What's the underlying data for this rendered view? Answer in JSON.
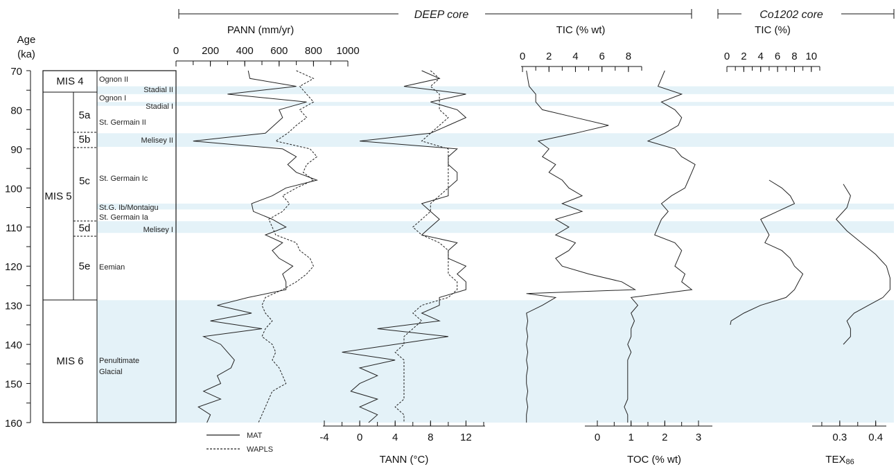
{
  "colors": {
    "band": "#e4f2f8",
    "line": "#222222"
  },
  "headers": {
    "deep": "DEEP core",
    "co1202": "Co1202 core"
  },
  "age_axis": {
    "title1": "Age",
    "title2": "(ka)",
    "ticks": [
      "70",
      "80",
      "90",
      "100",
      "110",
      "120",
      "130",
      "140",
      "150",
      "160"
    ]
  },
  "strat": {
    "mis": [
      "MIS 4",
      "MIS 5",
      "MIS 6"
    ],
    "sub": [
      "5a",
      "5b",
      "5c",
      "5d",
      "5e"
    ],
    "events": [
      "Ognon II",
      "Stadial II",
      "Ognon I",
      "Stadial I",
      "St. Germain II",
      "Melisey II",
      "St. Germain Ic",
      "St.G. Ib/Montaigu",
      "St. Germain Ia",
      "Melisey I",
      "Eemian",
      "Penultimate",
      "Glacial"
    ]
  },
  "axes": {
    "pann": {
      "title": "PANN (mm/yr)",
      "ticks": [
        "0",
        "200",
        "400",
        "600",
        "800",
        "1000"
      ]
    },
    "tann": {
      "title": "TANN (°C)",
      "ticks": [
        "-4",
        "0",
        "4",
        "8",
        "12"
      ]
    },
    "tic_deep": {
      "title": "TIC (% wt)",
      "ticks": [
        "0",
        "2",
        "4",
        "6",
        "8"
      ]
    },
    "toc": {
      "title": "TOC (% wt)",
      "ticks": [
        "0",
        "1",
        "2",
        "3"
      ]
    },
    "tic_co": {
      "title": "TIC (%)",
      "ticks": [
        "0",
        "2",
        "4",
        "6",
        "8",
        "10"
      ]
    },
    "tex": {
      "title": "TEX",
      "sub": "86",
      "ticks": [
        "0.3",
        "0.4"
      ]
    }
  },
  "legend": {
    "mat": "MAT",
    "wapls": "WAPLS"
  },
  "chart_data": [
    {
      "type": "line",
      "title": "PANN (mm/yr)",
      "xlabel": "PANN (mm/yr)",
      "ylabel": "Age (ka)",
      "xlim": [
        0,
        1000
      ],
      "ylim": [
        70,
        160
      ],
      "y": [
        70,
        72,
        74,
        76,
        78,
        80,
        82,
        84,
        86,
        88,
        90,
        92,
        94,
        96,
        98,
        100,
        102,
        104,
        106,
        108,
        110,
        112,
        114,
        116,
        118,
        120,
        122,
        124,
        126,
        128,
        130,
        132,
        134,
        136,
        138,
        140,
        142,
        144,
        146,
        148,
        150,
        152,
        154,
        156,
        158,
        160
      ],
      "series": [
        {
          "name": "MAT",
          "values": [
            420,
            430,
            700,
            300,
            760,
            600,
            620,
            570,
            520,
            100,
            620,
            700,
            650,
            700,
            820,
            640,
            560,
            440,
            450,
            560,
            640,
            520,
            620,
            560,
            600,
            680,
            620,
            640,
            640,
            420,
            240,
            440,
            200,
            500,
            160,
            260,
            300,
            340,
            320,
            240,
            260,
            160,
            260,
            130,
            200,
            180
          ]
        },
        {
          "name": "WAPLS",
          "values": [
            700,
            800,
            720,
            760,
            800,
            720,
            760,
            700,
            650,
            580,
            780,
            820,
            760,
            740,
            800,
            700,
            620,
            660,
            620,
            540,
            560,
            580,
            700,
            720,
            780,
            800,
            760,
            700,
            620,
            520,
            500,
            520,
            560,
            520,
            500,
            560,
            580,
            560,
            600,
            620,
            640,
            560,
            540,
            520,
            500,
            480
          ]
        }
      ]
    },
    {
      "type": "line",
      "title": "TANN (°C)",
      "xlabel": "TANN (°C)",
      "ylabel": "Age (ka)",
      "xlim": [
        -4,
        14
      ],
      "ylim": [
        70,
        160
      ],
      "y": [
        70,
        72,
        74,
        76,
        78,
        80,
        82,
        84,
        86,
        88,
        90,
        92,
        94,
        96,
        98,
        100,
        102,
        104,
        106,
        108,
        110,
        112,
        114,
        116,
        118,
        120,
        122,
        124,
        126,
        128,
        130,
        132,
        134,
        136,
        138,
        140,
        142,
        144,
        146,
        148,
        150,
        152,
        154,
        156,
        158,
        160
      ],
      "series": [
        {
          "name": "MAT",
          "values": [
            7,
            9,
            5,
            12,
            8,
            11,
            12,
            10,
            8,
            0,
            11,
            10,
            10,
            11,
            11,
            10,
            10,
            7,
            8,
            9,
            8,
            7,
            11,
            10,
            10,
            12,
            11,
            12,
            12,
            9,
            9,
            7,
            9,
            2,
            10,
            4,
            -2,
            4,
            0,
            2,
            0,
            -1,
            2,
            0,
            2,
            1
          ]
        },
        {
          "name": "WAPLS",
          "values": [
            8,
            9,
            8,
            9,
            9,
            9,
            10,
            9,
            8,
            7,
            10,
            10,
            10,
            10,
            10,
            10,
            9,
            8,
            8,
            7,
            6,
            7,
            9,
            10,
            10,
            10,
            10,
            11,
            11,
            10,
            7,
            6,
            7,
            6,
            5,
            5,
            4,
            5,
            5,
            5,
            5,
            5,
            5,
            4,
            5,
            5
          ]
        }
      ]
    },
    {
      "type": "line",
      "title": "TIC (% wt)",
      "xlabel": "TIC (% wt)",
      "ylabel": "Age (ka)",
      "xlim": [
        0,
        9
      ],
      "ylim": [
        70,
        160
      ],
      "y": [
        70,
        72,
        74,
        76,
        78,
        80,
        82,
        84,
        86,
        88,
        90,
        92,
        94,
        96,
        98,
        100,
        102,
        104,
        106,
        108,
        110,
        112,
        114,
        116,
        118,
        120,
        122,
        124,
        126,
        127,
        128,
        130,
        132,
        134,
        136,
        138,
        140,
        142,
        144,
        146,
        148,
        150,
        152,
        154,
        156,
        158,
        160
      ],
      "series": [
        {
          "name": "TIC",
          "values": [
            0.3,
            0.4,
            0.5,
            1.0,
            1.0,
            1.5,
            4.0,
            6.5,
            4.0,
            1.2,
            2.0,
            1.5,
            2.5,
            2.0,
            3.0,
            3.5,
            4.5,
            3.0,
            4.5,
            2.5,
            3.5,
            2.5,
            4.0,
            3.5,
            2.5,
            3.0,
            5.0,
            7.5,
            8.5,
            0.3,
            2.5,
            1.5,
            0.3,
            0.4,
            0.3,
            0.4,
            0.3,
            0.4,
            0.3,
            0.4,
            0.3,
            0.3,
            0.4,
            0.3,
            0.4,
            0.3,
            0.3
          ]
        }
      ]
    },
    {
      "type": "line",
      "title": "TOC (% wt)",
      "xlabel": "TOC (% wt)",
      "ylabel": "Age (ka)",
      "xlim": [
        0,
        3
      ],
      "ylim": [
        70,
        160
      ],
      "y": [
        70,
        72,
        74,
        76,
        78,
        80,
        82,
        84,
        86,
        88,
        90,
        92,
        94,
        96,
        98,
        100,
        102,
        104,
        106,
        108,
        110,
        112,
        114,
        116,
        118,
        120,
        122,
        124,
        126,
        128,
        130,
        132,
        134,
        136,
        138,
        140,
        142,
        144,
        146,
        148,
        150,
        152,
        154,
        156,
        158,
        160
      ],
      "series": [
        {
          "name": "TOC",
          "values": [
            2.0,
            1.9,
            1.8,
            2.5,
            1.9,
            2.3,
            2.5,
            2.4,
            2.0,
            1.5,
            2.3,
            2.5,
            2.9,
            2.8,
            2.7,
            2.6,
            2.2,
            1.9,
            2.1,
            1.9,
            1.8,
            1.7,
            2.3,
            2.5,
            2.4,
            2.3,
            2.6,
            2.5,
            2.8,
            1.0,
            1.2,
            1.0,
            1.1,
            1.0,
            1.0,
            0.9,
            1.0,
            0.9,
            0.9,
            0.9,
            0.9,
            0.9,
            0.9,
            0.8,
            0.9,
            0.9
          ]
        }
      ]
    },
    {
      "type": "line",
      "title": "TIC (%)",
      "xlabel": "TIC (%)",
      "ylabel": "Age (ka)",
      "xlim": [
        0,
        11
      ],
      "ylim": [
        70,
        160
      ],
      "y": [
        98,
        100,
        102,
        104,
        106,
        108,
        110,
        112,
        114,
        116,
        118,
        120,
        122,
        124,
        126,
        128,
        130,
        132,
        134,
        135
      ],
      "series": [
        {
          "name": "TIC",
          "values": [
            5.0,
            6.5,
            7.5,
            8.0,
            6.0,
            4.0,
            4.5,
            5.0,
            4.5,
            6.5,
            7.5,
            8.0,
            9.0,
            8.5,
            8.0,
            7.0,
            4.0,
            2.0,
            0.5,
            0.4
          ]
        }
      ]
    },
    {
      "type": "line",
      "title": "TEX86",
      "xlabel": "TEX86",
      "ylabel": "Age (ka)",
      "xlim": [
        0.2,
        0.47
      ],
      "ylim": [
        70,
        160
      ],
      "y": [
        99,
        102,
        105,
        108,
        111,
        114,
        117,
        120,
        123,
        126,
        128,
        130,
        132,
        134,
        136,
        138,
        140
      ],
      "series": [
        {
          "name": "TEX86",
          "values": [
            0.31,
            0.33,
            0.32,
            0.29,
            0.32,
            0.36,
            0.4,
            0.43,
            0.44,
            0.44,
            0.42,
            0.38,
            0.34,
            0.32,
            0.33,
            0.33,
            0.31
          ]
        }
      ]
    }
  ]
}
